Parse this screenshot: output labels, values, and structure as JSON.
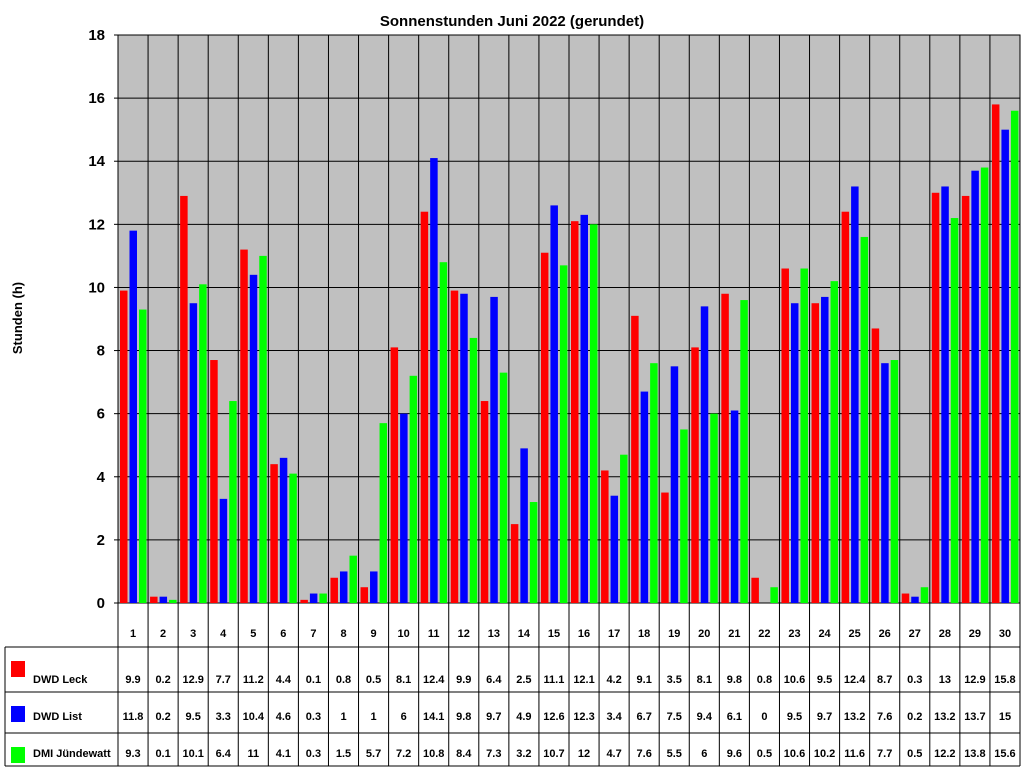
{
  "chart_data": {
    "type": "bar",
    "title": "Sonnenstunden Juni 2022 (gerundet)",
    "xlabel": "",
    "ylabel": "Stunden (h)",
    "ylim": [
      0,
      18
    ],
    "yticks": [
      "0",
      "2",
      "4",
      "6",
      "8",
      "10",
      "12",
      "14",
      "16",
      "18"
    ],
    "grid": true,
    "categories": [
      "1",
      "2",
      "3",
      "4",
      "5",
      "6",
      "7",
      "8",
      "9",
      "10",
      "11",
      "12",
      "13",
      "14",
      "15",
      "16",
      "17",
      "18",
      "19",
      "20",
      "21",
      "22",
      "23",
      "24",
      "25",
      "26",
      "27",
      "28",
      "29",
      "30"
    ],
    "series": [
      {
        "name": "DWD Leck",
        "color": "#ff0000",
        "values": [
          9.9,
          0.2,
          12.9,
          7.7,
          11.2,
          4.4,
          0.1,
          0.8,
          0.5,
          8.1,
          12.4,
          9.9,
          6.4,
          2.5,
          11.1,
          12.1,
          4.2,
          9.1,
          3.5,
          8.1,
          9.8,
          0.8,
          10.6,
          9.5,
          12.4,
          8.7,
          0.3,
          13,
          12.9,
          15.8
        ],
        "labels": [
          "9.9",
          "0.2",
          "12.9",
          "7.7",
          "11.2",
          "4.4",
          "0.1",
          "0.8",
          "0.5",
          "8.1",
          "12.4",
          "9.9",
          "6.4",
          "2.5",
          "11.1",
          "12.1",
          "4.2",
          "9.1",
          "3.5",
          "8.1",
          "9.8",
          "0.8",
          "10.6",
          "9.5",
          "12.4",
          "8.7",
          "0.3",
          "13",
          "12.9",
          "15.8"
        ]
      },
      {
        "name": "DWD List",
        "color": "#0000ff",
        "values": [
          11.8,
          0.2,
          9.5,
          3.3,
          10.4,
          4.6,
          0.3,
          1,
          1,
          6,
          14.1,
          9.8,
          9.7,
          4.9,
          12.6,
          12.3,
          3.4,
          6.7,
          7.5,
          9.4,
          6.1,
          0,
          9.5,
          9.7,
          13.2,
          7.6,
          0.2,
          13.2,
          13.7,
          15
        ],
        "labels": [
          "11.8",
          "0.2",
          "9.5",
          "3.3",
          "10.4",
          "4.6",
          "0.3",
          "1",
          "1",
          "6",
          "14.1",
          "9.8",
          "9.7",
          "4.9",
          "12.6",
          "12.3",
          "3.4",
          "6.7",
          "7.5",
          "9.4",
          "6.1",
          "0",
          "9.5",
          "9.7",
          "13.2",
          "7.6",
          "0.2",
          "13.2",
          "13.7",
          "15"
        ]
      },
      {
        "name": "DMI Jündewatt",
        "color": "#00ff00",
        "values": [
          9.3,
          0.1,
          10.1,
          6.4,
          11,
          4.1,
          0.3,
          1.5,
          5.7,
          7.2,
          10.8,
          8.4,
          7.3,
          3.2,
          10.7,
          12,
          4.7,
          7.6,
          5.5,
          6,
          9.6,
          0.5,
          10.6,
          10.2,
          11.6,
          7.7,
          0.5,
          12.2,
          13.8,
          15.6
        ],
        "labels": [
          "9.3",
          "0.1",
          "10.1",
          "6.4",
          "11",
          "4.1",
          "0.3",
          "1.5",
          "5.7",
          "7.2",
          "10.8",
          "8.4",
          "7.3",
          "3.2",
          "10.7",
          "12",
          "4.7",
          "7.6",
          "5.5",
          "6",
          "9.6",
          "0.5",
          "10.6",
          "10.2",
          "11.6",
          "7.7",
          "0.5",
          "12.2",
          "13.8",
          "15.6"
        ]
      }
    ],
    "plot_background": "#c0c0c0"
  }
}
